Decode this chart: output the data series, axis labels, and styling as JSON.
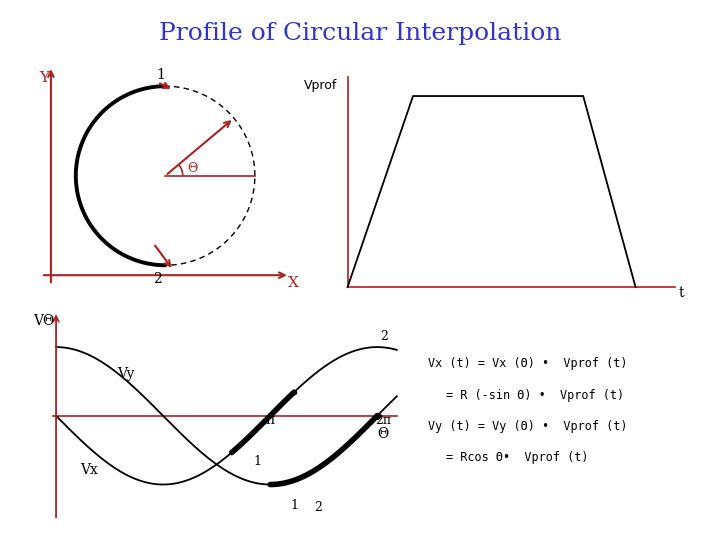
{
  "title": "Profile of Circular Interpolation",
  "title_color": "#3333cc",
  "title_fontsize": 18,
  "bg_color": "#ffffff",
  "axis_color": "#aa2222",
  "line_color": "#000000",
  "equations": [
    "Vx (t) = Vx (Θ) •  Vprof (t)",
    "= R (-sin Θ) •  Vprof (t)",
    "Vy (t) = Vy (Θ) •  Vprof (t)",
    "= Rcos Θ•  Vprof (t)"
  ]
}
